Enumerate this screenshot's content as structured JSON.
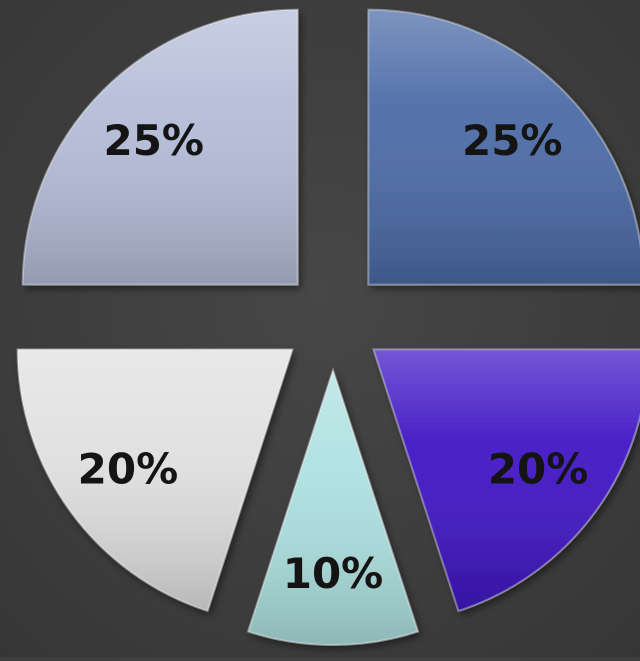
{
  "chart_data": {
    "type": "pie",
    "style": "exploded",
    "slices": [
      {
        "value": 25,
        "label": "25%",
        "color": "#4a6aa6"
      },
      {
        "value": 20,
        "label": "20%",
        "color": "#3f14c4"
      },
      {
        "value": 10,
        "label": "10%",
        "color": "#ade0e0"
      },
      {
        "value": 20,
        "label": "20%",
        "color": "#e0e0e0"
      },
      {
        "value": 25,
        "label": "25%",
        "color": "#b4bcd8"
      }
    ]
  },
  "colors": {
    "background": "#3f3f3f",
    "label_text": "#141414"
  }
}
